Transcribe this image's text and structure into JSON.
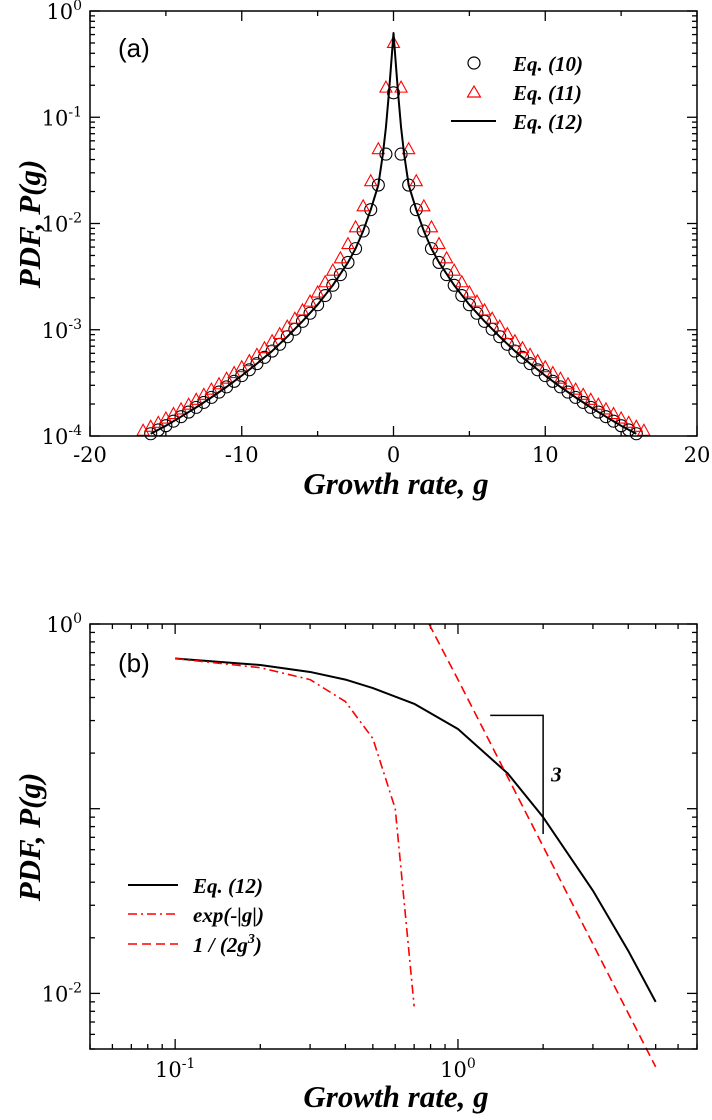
{
  "chart_data": [
    {
      "type": "scatter",
      "panel_label": "(a)",
      "xlabel": "Growth rate, g",
      "ylabel": "PDF, P(g)",
      "xlim": [
        -20,
        20
      ],
      "ylim": [
        0.0001,
        1
      ],
      "yscale": "log",
      "grid": false,
      "legend_position": "top-right",
      "xticks": [
        {
          "value": -20,
          "label": "-20"
        },
        {
          "value": -10,
          "label": "-10"
        },
        {
          "value": 0,
          "label": "0"
        },
        {
          "value": 10,
          "label": "10"
        },
        {
          "value": 20,
          "label": "20"
        }
      ],
      "yticks": [
        {
          "value": 0.0001,
          "base": "10",
          "exp": "-4"
        },
        {
          "value": 0.001,
          "base": "10",
          "exp": "-3"
        },
        {
          "value": 0.01,
          "base": "10",
          "exp": "-2"
        },
        {
          "value": 0.1,
          "base": "10",
          "exp": "-1"
        },
        {
          "value": 1,
          "base": "10",
          "exp": "0"
        }
      ],
      "series": [
        {
          "name": "Eq. (10)",
          "marker": "circle",
          "color": "#000000",
          "x": [
            -16,
            -15.5,
            -15,
            -14.5,
            -14,
            -13.5,
            -13,
            -12.5,
            -12,
            -11.5,
            -11,
            -10.5,
            -10,
            -9.5,
            -9,
            -8.5,
            -8,
            -7.5,
            -7,
            -6.5,
            -6,
            -5.5,
            -5,
            -4.5,
            -4,
            -3.5,
            -3,
            -2.5,
            -2,
            -1.5,
            -1,
            -0.5,
            0,
            0.5,
            1,
            1.5,
            2,
            2.5,
            3,
            3.5,
            4,
            4.5,
            5,
            5.5,
            6,
            6.5,
            7,
            7.5,
            8,
            8.5,
            9,
            9.5,
            10,
            10.5,
            11,
            11.5,
            12,
            12.5,
            13,
            13.5,
            14,
            14.5,
            15,
            15.5,
            16
          ],
          "y": [
            0.000105,
            0.000114,
            0.000125,
            0.000138,
            0.000152,
            0.000168,
            0.000186,
            0.000207,
            0.000231,
            0.000259,
            0.00029,
            0.000327,
            0.00037,
            0.00042,
            0.00048,
            0.00055,
            0.00063,
            0.00073,
            0.00086,
            0.00101,
            0.0012,
            0.00143,
            0.00172,
            0.0021,
            0.00262,
            0.0033,
            0.0043,
            0.0058,
            0.0085,
            0.0135,
            0.023,
            0.045,
            0.17,
            0.045,
            0.023,
            0.0135,
            0.0085,
            0.0058,
            0.0043,
            0.0033,
            0.00262,
            0.0021,
            0.00172,
            0.00143,
            0.0012,
            0.00101,
            0.00086,
            0.00073,
            0.00063,
            0.00055,
            0.00048,
            0.00042,
            0.00037,
            0.000327,
            0.00029,
            0.000259,
            0.000231,
            0.000207,
            0.000186,
            0.000168,
            0.000152,
            0.000138,
            0.000125,
            0.000114,
            0.000105
          ]
        },
        {
          "name": "Eq. (11)",
          "marker": "triangle",
          "color": "#ff0000",
          "x": [
            -16.5,
            -16,
            -15.5,
            -15,
            -14.5,
            -14,
            -13.5,
            -13,
            -12.5,
            -12,
            -11.5,
            -11,
            -10.5,
            -10,
            -9.5,
            -9,
            -8.5,
            -8,
            -7.5,
            -7,
            -6.5,
            -6,
            -5.5,
            -5,
            -4.5,
            -4,
            -3.5,
            -3,
            -2.5,
            -2,
            -1.5,
            -1,
            -0.5,
            0,
            0.5,
            1,
            1.5,
            2,
            2.5,
            3,
            3.5,
            4,
            4.5,
            5,
            5.5,
            6,
            6.5,
            7,
            7.5,
            8,
            8.5,
            9,
            9.5,
            10,
            10.5,
            11,
            11.5,
            12,
            12.5,
            13,
            13.5,
            14,
            14.5,
            15,
            15.5,
            16,
            16.5
          ],
          "y": [
            0.000112,
            0.000122,
            0.000133,
            0.000146,
            0.000161,
            0.000178,
            0.000197,
            0.000219,
            0.000244,
            0.000273,
            0.000307,
            0.000346,
            0.000391,
            0.000444,
            0.000506,
            0.00058,
            0.00067,
            0.00078,
            0.00091,
            0.00107,
            0.00127,
            0.00152,
            0.00184,
            0.00224,
            0.0028,
            0.0036,
            0.0047,
            0.0064,
            0.0092,
            0.0145,
            0.025,
            0.05,
            0.19,
            0.5,
            0.19,
            0.05,
            0.025,
            0.0145,
            0.0092,
            0.0064,
            0.0047,
            0.0036,
            0.0028,
            0.00224,
            0.00184,
            0.00152,
            0.00127,
            0.00107,
            0.00091,
            0.00078,
            0.00067,
            0.00058,
            0.000506,
            0.000444,
            0.000391,
            0.000346,
            0.000307,
            0.000273,
            0.000244,
            0.000219,
            0.000197,
            0.000178,
            0.000161,
            0.000146,
            0.000133,
            0.000122,
            0.000112
          ]
        },
        {
          "name": "Eq. (12)",
          "marker": "line-solid",
          "color": "#000000",
          "x": [
            -16,
            -15,
            -14,
            -13,
            -12,
            -11,
            -10,
            -9,
            -8,
            -7,
            -6,
            -5,
            -4,
            -3,
            -2.5,
            -2,
            -1.5,
            -1,
            -0.7,
            -0.5,
            -0.3,
            -0.1,
            0,
            0.1,
            0.3,
            0.5,
            0.7,
            1,
            1.5,
            2,
            2.5,
            3,
            4,
            5,
            6,
            7,
            8,
            9,
            10,
            11,
            12,
            13,
            14,
            15,
            16
          ],
          "y": [
            0.000105,
            0.000125,
            0.000152,
            0.000186,
            0.000231,
            0.00029,
            0.00037,
            0.00048,
            0.00063,
            0.00086,
            0.0012,
            0.00172,
            0.00262,
            0.0043,
            0.0058,
            0.0085,
            0.0135,
            0.023,
            0.045,
            0.08,
            0.17,
            0.4,
            0.62,
            0.4,
            0.17,
            0.08,
            0.045,
            0.023,
            0.0135,
            0.0085,
            0.0058,
            0.0043,
            0.00262,
            0.00172,
            0.0012,
            0.00086,
            0.00063,
            0.00048,
            0.00037,
            0.00029,
            0.000231,
            0.000186,
            0.000152,
            0.000125,
            0.000105
          ]
        }
      ]
    },
    {
      "type": "line",
      "panel_label": "(b)",
      "xlabel": "Growth rate, g",
      "ylabel": "PDF, P(g)",
      "xlim": [
        0.05,
        7
      ],
      "ylim": [
        0.005,
        1
      ],
      "xscale": "log",
      "yscale": "log",
      "grid": false,
      "legend_position": "bottom-left",
      "xticks": [
        {
          "value": 0.1,
          "base": "10",
          "exp": "-1"
        },
        {
          "value": 1,
          "base": "10",
          "exp": "0"
        }
      ],
      "yticks": [
        {
          "value": 0.01,
          "base": "10",
          "exp": "-2"
        },
        {
          "value": 1,
          "base": "10",
          "exp": "0"
        }
      ],
      "annotation": {
        "label": "3",
        "x_start": 1.3,
        "x_end": 2.0,
        "y_top": 0.32,
        "y_bottom": 0.073
      },
      "series": [
        {
          "name": "Eq. (12)",
          "style": "solid",
          "color": "#000000",
          "x": [
            0.1,
            0.2,
            0.3,
            0.4,
            0.5,
            0.7,
            1.0,
            1.5,
            2.0,
            3.0,
            4.0,
            5.0
          ],
          "y": [
            0.65,
            0.6,
            0.55,
            0.5,
            0.45,
            0.37,
            0.27,
            0.155,
            0.09,
            0.036,
            0.017,
            0.009
          ]
        },
        {
          "name": "exp(-|g|)",
          "style": "dash-dot",
          "color": "#ff0000",
          "x": [
            0.1,
            0.2,
            0.3,
            0.4,
            0.5,
            0.6,
            0.7
          ],
          "y": [
            0.65,
            0.58,
            0.5,
            0.38,
            0.24,
            0.1,
            0.0085
          ]
        },
        {
          "name": "1 / (2g^3)",
          "style": "dashed",
          "color": "#ff0000",
          "x": [
            0.79,
            1.0,
            1.5,
            2.0,
            3.0,
            4.0,
            5.0
          ],
          "y": [
            1.0,
            0.5,
            0.148,
            0.0625,
            0.0185,
            0.0078,
            0.004
          ]
        }
      ]
    }
  ]
}
